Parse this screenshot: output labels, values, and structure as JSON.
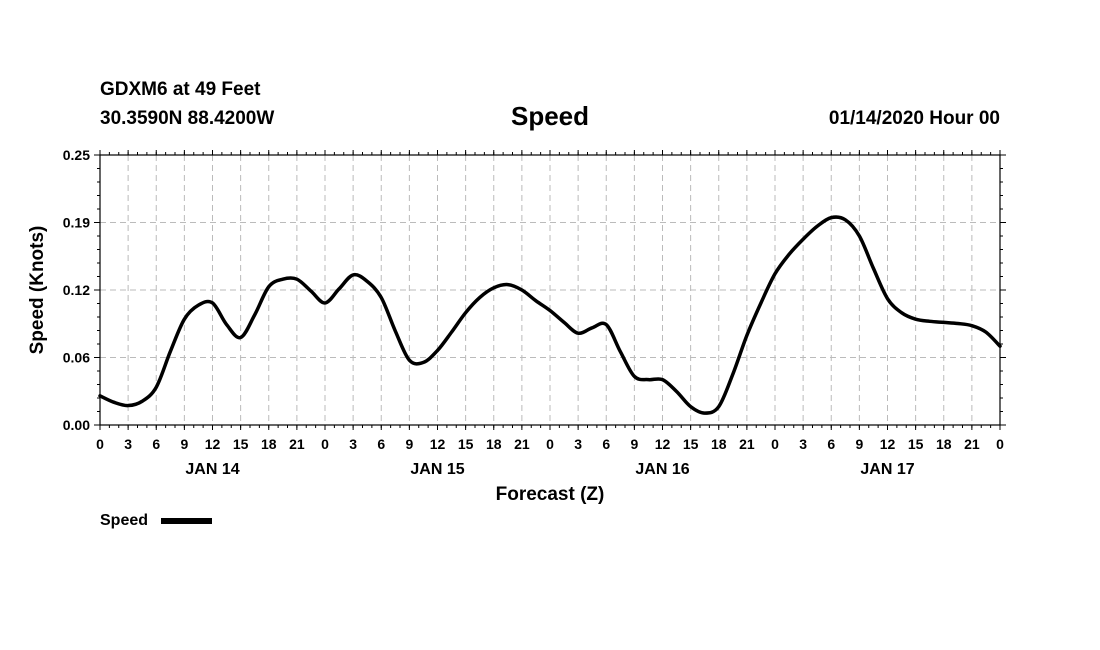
{
  "header": {
    "station": "GDXM6 at 49 Feet",
    "location": "30.3590N 88.4200W",
    "date": "01/14/2020 Hour 00"
  },
  "colors": {
    "line": "#000000",
    "grid": "#bbbbbb",
    "axis": "#000000"
  },
  "chart_data": {
    "type": "line",
    "title": "Speed",
    "xlabel": "Forecast (Z)",
    "ylabel": "Speed (Knots)",
    "xlim": [
      0,
      96
    ],
    "ylim": [
      0,
      0.25
    ],
    "yticks": [
      "0.00",
      "0.06",
      "0.12",
      "0.19",
      "0.25"
    ],
    "xtick_labels": [
      "0",
      "3",
      "6",
      "9",
      "12",
      "15",
      "18",
      "21",
      "0",
      "3",
      "6",
      "9",
      "12",
      "15",
      "18",
      "21",
      "0",
      "3",
      "6",
      "9",
      "12",
      "15",
      "18",
      "21",
      "0",
      "3",
      "6",
      "9",
      "12",
      "15",
      "18",
      "21",
      "0"
    ],
    "day_labels": [
      "JAN 14",
      "JAN 15",
      "JAN 16",
      "JAN 17"
    ],
    "grid": true,
    "legend": "bottom-left",
    "series": [
      {
        "name": "Speed",
        "x": [
          0,
          1.5,
          3,
          4.5,
          6,
          7.5,
          9,
          10.5,
          12,
          13.5,
          15,
          16.5,
          18,
          19.5,
          21,
          22.5,
          24,
          25.5,
          27,
          28.5,
          30,
          31.5,
          33,
          34.5,
          36,
          37.5,
          39,
          40.5,
          42,
          43.5,
          45,
          46.5,
          48,
          49.5,
          51,
          52.5,
          54,
          55.5,
          57,
          58.5,
          60,
          61.5,
          63,
          64.5,
          66,
          67.5,
          69,
          70.5,
          72,
          73.5,
          75,
          76.5,
          78,
          79.5,
          81,
          82.5,
          84,
          85.5,
          87,
          88.5,
          90,
          91.5,
          93,
          94.5,
          96
        ],
        "values": [
          0.027,
          0.021,
          0.018,
          0.022,
          0.035,
          0.068,
          0.098,
          0.111,
          0.113,
          0.093,
          0.081,
          0.102,
          0.128,
          0.135,
          0.135,
          0.124,
          0.113,
          0.126,
          0.139,
          0.133,
          0.118,
          0.087,
          0.06,
          0.058,
          0.069,
          0.086,
          0.104,
          0.118,
          0.127,
          0.13,
          0.125,
          0.115,
          0.106,
          0.095,
          0.085,
          0.09,
          0.093,
          0.068,
          0.045,
          0.042,
          0.042,
          0.031,
          0.017,
          0.011,
          0.017,
          0.047,
          0.083,
          0.113,
          0.14,
          0.158,
          0.172,
          0.184,
          0.192,
          0.19,
          0.175,
          0.145,
          0.117,
          0.104,
          0.098,
          0.096,
          0.095,
          0.094,
          0.092,
          0.086,
          0.073
        ]
      }
    ]
  }
}
